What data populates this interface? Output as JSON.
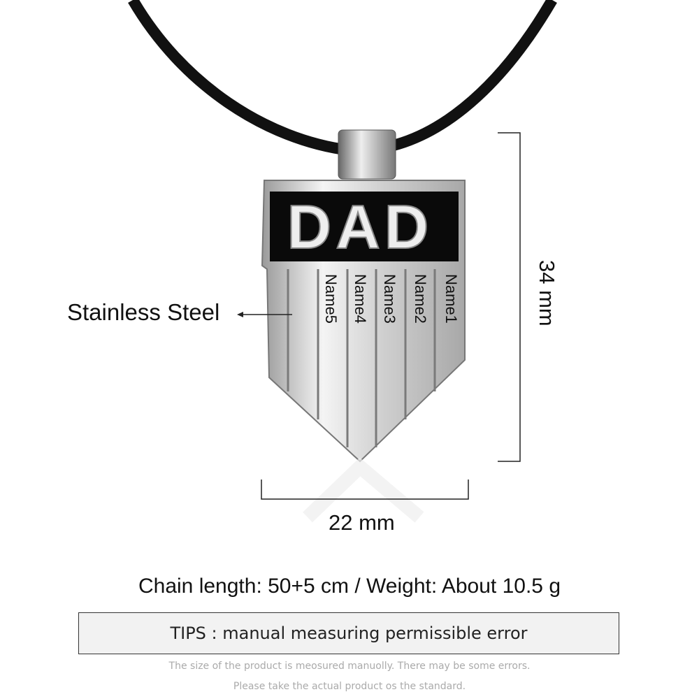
{
  "pendant": {
    "title": "DAD",
    "names": [
      "Name1",
      "Name2",
      "Name3",
      "Name4",
      "Name5"
    ]
  },
  "labels": {
    "material": "Stainless Steel",
    "width": "22 mm",
    "height": "34 mm"
  },
  "spec": "Chain length: 50+5 cm / Weight: About 10.5 g",
  "tips": "TIPS : manual measuring permissible error",
  "notes": [
    "The size of the product is meosured manuolly. There may be some errors.",
    "Please take the actual product os the standard."
  ],
  "colors": {
    "cord": "#111111",
    "steel": "#d8d8d8",
    "band": "#0a0a0a"
  }
}
